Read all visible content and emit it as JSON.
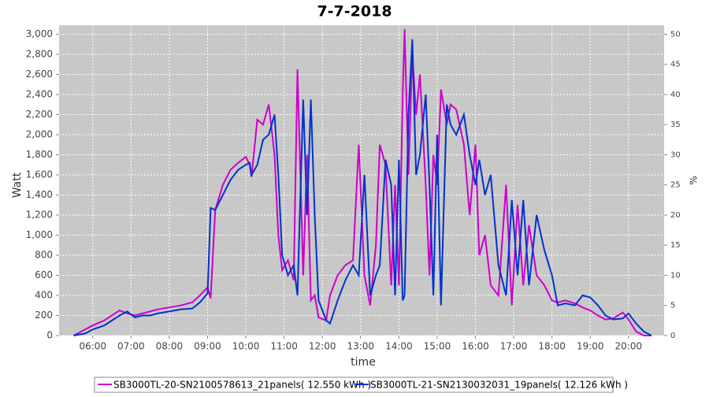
{
  "chart_data": {
    "type": "line",
    "title": "7-7-2018",
    "x_label": "time",
    "y_label": "Watt",
    "y2_label": "%",
    "x": [
      5.5,
      5.8,
      6.0,
      6.3,
      6.5,
      6.7,
      6.9,
      7.1,
      7.3,
      7.5,
      7.7,
      8.0,
      8.3,
      8.6,
      8.8,
      9.0,
      9.08,
      9.2,
      9.4,
      9.6,
      9.8,
      10.0,
      10.1,
      10.15,
      10.3,
      10.45,
      10.6,
      10.75,
      10.85,
      10.95,
      11.1,
      11.25,
      11.35,
      11.5,
      11.6,
      11.7,
      11.8,
      11.9,
      12.1,
      12.2,
      12.4,
      12.6,
      12.8,
      12.95,
      13.1,
      13.25,
      13.4,
      13.5,
      13.65,
      13.8,
      13.9,
      14.0,
      14.1,
      14.15,
      14.25,
      14.35,
      14.45,
      14.55,
      14.7,
      14.8,
      14.9,
      15.0,
      15.1,
      15.25,
      15.35,
      15.5,
      15.7,
      15.85,
      16.0,
      16.1,
      16.25,
      16.4,
      16.6,
      16.8,
      16.95,
      17.1,
      17.25,
      17.4,
      17.6,
      17.8,
      18.0,
      18.15,
      18.35,
      18.6,
      18.8,
      19.0,
      19.2,
      19.4,
      19.6,
      19.85,
      20.0,
      20.2,
      20.4,
      20.6
    ],
    "series": [
      {
        "name": "SB3000TL-20-SN2100578613_21panels( 12.550 kWh )",
        "color": "#cc00cc",
        "values": [
          0,
          60,
          100,
          150,
          200,
          250,
          220,
          200,
          220,
          240,
          260,
          280,
          300,
          330,
          400,
          480,
          370,
          1250,
          1500,
          1650,
          1720,
          1780,
          1700,
          1580,
          2150,
          2100,
          2300,
          1800,
          1000,
          650,
          750,
          550,
          2650,
          600,
          1800,
          350,
          400,
          180,
          150,
          400,
          600,
          700,
          750,
          1900,
          600,
          300,
          900,
          1900,
          1700,
          500,
          1500,
          500,
          2400,
          3050,
          1600,
          2800,
          2200,
          2600,
          1500,
          600,
          1800,
          1500,
          2450,
          2100,
          2300,
          2250,
          1900,
          1200,
          1900,
          800,
          1000,
          500,
          400,
          1500,
          300,
          1300,
          500,
          1100,
          600,
          500,
          350,
          330,
          350,
          320,
          280,
          250,
          200,
          160,
          170,
          230,
          160,
          40,
          0,
          0
        ]
      },
      {
        "name": "SB3000TL-21-SN2130032031_19panels( 12.126 kWh )",
        "color": "#0033cc",
        "values": [
          0,
          20,
          60,
          100,
          150,
          200,
          240,
          180,
          200,
          200,
          220,
          240,
          260,
          270,
          330,
          420,
          1270,
          1250,
          1400,
          1550,
          1650,
          1700,
          1720,
          1600,
          1700,
          1950,
          2000,
          2200,
          1600,
          800,
          600,
          700,
          400,
          2350,
          1200,
          2350,
          1200,
          350,
          150,
          120,
          350,
          550,
          700,
          600,
          1600,
          400,
          600,
          700,
          1750,
          1500,
          400,
          1750,
          350,
          400,
          2200,
          2950,
          1600,
          1800,
          2400,
          1500,
          400,
          2000,
          300,
          2300,
          2100,
          2000,
          2200,
          1800,
          1500,
          1750,
          1400,
          1600,
          700,
          400,
          1350,
          600,
          1350,
          500,
          1200,
          850,
          600,
          300,
          320,
          300,
          400,
          380,
          300,
          200,
          160,
          170,
          220,
          120,
          40,
          0
        ]
      }
    ],
    "xlim": [
      5.12,
      20.93
    ],
    "xticks": [
      {
        "value": 6,
        "label": "06:00"
      },
      {
        "value": 7,
        "label": "07:00"
      },
      {
        "value": 8,
        "label": "08:00"
      },
      {
        "value": 9,
        "label": "09:00"
      },
      {
        "value": 10,
        "label": "10:00"
      },
      {
        "value": 11,
        "label": "11:00"
      },
      {
        "value": 12,
        "label": "12:00"
      },
      {
        "value": 13,
        "label": "13:00"
      },
      {
        "value": 14,
        "label": "14:00"
      },
      {
        "value": 15,
        "label": "15:00"
      },
      {
        "value": 16,
        "label": "16:00"
      },
      {
        "value": 17,
        "label": "17:00"
      },
      {
        "value": 18,
        "label": "18:00"
      },
      {
        "value": 19,
        "label": "19:00"
      },
      {
        "value": 20,
        "label": "20:00"
      }
    ],
    "ylim": [
      0,
      3090
    ],
    "yticks": [
      0,
      200,
      400,
      600,
      800,
      {
        "value": 1000,
        "label": "1,000"
      },
      {
        "value": 1200,
        "label": "1,200"
      },
      {
        "value": 1400,
        "label": "1,400"
      },
      {
        "value": 1600,
        "label": "1,600"
      },
      {
        "value": 1800,
        "label": "1,800"
      },
      {
        "value": 2000,
        "label": "2,000"
      },
      {
        "value": 2200,
        "label": "2,200"
      },
      {
        "value": 2400,
        "label": "2,400"
      },
      {
        "value": 2600,
        "label": "2,600"
      },
      {
        "value": 2800,
        "label": "2,800"
      },
      {
        "value": 3000,
        "label": "3,000"
      }
    ],
    "y2lim": [
      0,
      51.5
    ],
    "y2ticks": [
      0,
      5,
      10,
      15,
      20,
      25,
      30,
      35,
      40,
      45,
      50
    ],
    "grid": true
  }
}
